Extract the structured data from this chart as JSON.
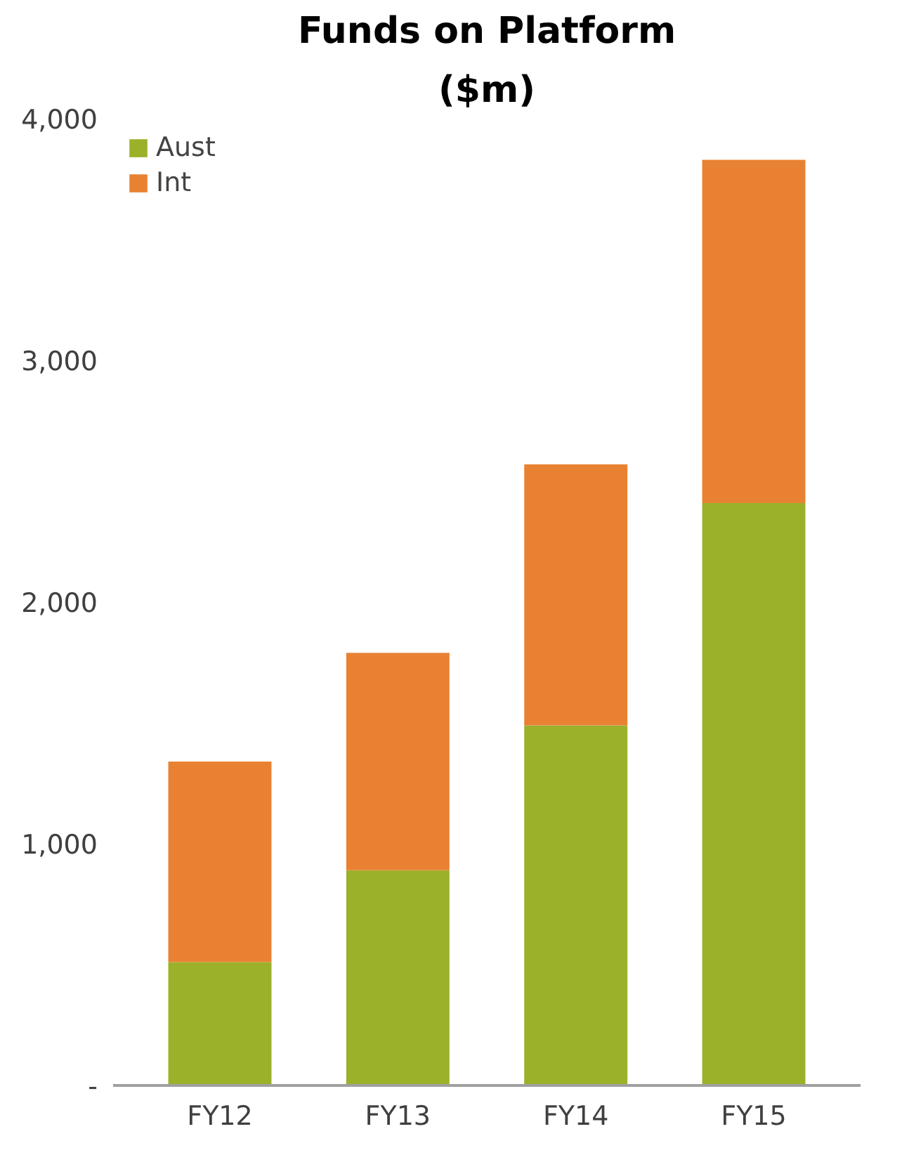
{
  "chart_data": {
    "type": "bar",
    "title": "Funds on Platform",
    "subtitle": "($m)",
    "categories": [
      "FY12",
      "FY13",
      "FY14",
      "FY15"
    ],
    "stacked": true,
    "series": [
      {
        "name": "Aust",
        "color": "#9bb12a",
        "values": [
          510,
          890,
          1490,
          2410
        ]
      },
      {
        "name": "Int",
        "color": "#e88232",
        "values": [
          830,
          900,
          1080,
          1420
        ]
      }
    ],
    "ylim": [
      0,
      4000
    ],
    "yticks": [
      {
        "value": 0,
        "label": "-"
      },
      {
        "value": 1000,
        "label": "1,000"
      },
      {
        "value": 2000,
        "label": "2,000"
      },
      {
        "value": 3000,
        "label": "3,000"
      },
      {
        "value": 4000,
        "label": "4,000"
      }
    ],
    "grid": false,
    "legend": "top left"
  }
}
